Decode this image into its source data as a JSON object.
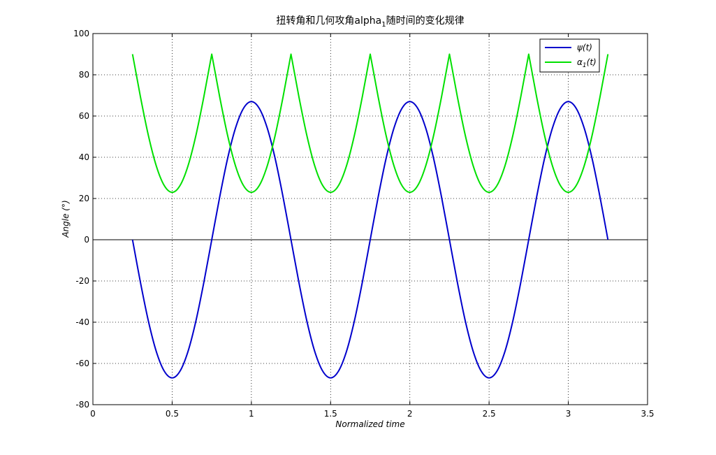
{
  "chart_data": {
    "type": "line",
    "title_main": "扭转角和几何攻角alpha",
    "title_sub": "1",
    "title_rest": "随时间的变化规律",
    "xlabel": "Normalized time",
    "ylabel": "Angle (°)",
    "xlim": [
      0,
      3.5
    ],
    "ylim": [
      -80,
      100
    ],
    "xticks": [
      0,
      0.5,
      1,
      1.5,
      2,
      2.5,
      3,
      3.5
    ],
    "yticks": [
      -80,
      -60,
      -40,
      -20,
      0,
      20,
      40,
      60,
      80,
      100
    ],
    "xtick_labels": [
      "0",
      "0.5",
      "1",
      "1.5",
      "2",
      "2.5",
      "3",
      "3.5"
    ],
    "ytick_labels": [
      "-80",
      "-60",
      "-40",
      "-20",
      "0",
      "20",
      "40",
      "60",
      "80",
      "100"
    ],
    "grid": true,
    "legend_position": "top-right",
    "series": [
      {
        "name": "ψ(t)",
        "legend_label": "ψ(t)",
        "color": "#0000cc",
        "x": [
          0.25,
          0.3,
          0.35,
          0.4,
          0.45,
          0.5,
          0.55,
          0.6,
          0.65,
          0.7,
          0.75,
          0.8,
          0.85,
          0.9,
          0.95,
          1.0,
          1.05,
          1.1,
          1.15,
          1.2,
          1.25,
          1.3,
          1.35,
          1.4,
          1.45,
          1.5,
          1.55,
          1.6,
          1.65,
          1.7,
          1.75,
          1.8,
          1.85,
          1.9,
          1.95,
          2.0,
          2.05,
          2.1,
          2.15,
          2.2,
          2.25,
          2.3,
          2.35,
          2.4,
          2.45,
          2.5,
          2.55,
          2.6,
          2.65,
          2.7,
          2.75,
          2.8,
          2.85,
          2.9,
          2.95,
          3.0,
          3.05,
          3.1,
          3.15,
          3.2,
          3.25
        ],
        "y": [
          0,
          -20.7,
          -39.4,
          -54.2,
          -63.7,
          -67.0,
          -63.7,
          -54.2,
          -39.4,
          -20.7,
          0,
          20.7,
          39.4,
          54.2,
          63.7,
          67.0,
          63.7,
          54.2,
          39.4,
          20.7,
          0,
          -20.7,
          -39.4,
          -54.2,
          -63.7,
          -67.0,
          -63.7,
          -54.2,
          -39.4,
          -20.7,
          0,
          20.7,
          39.4,
          54.2,
          63.7,
          67.0,
          63.7,
          54.2,
          39.4,
          20.7,
          0,
          -20.7,
          -39.4,
          -54.2,
          -63.7,
          -67.0,
          -63.7,
          -54.2,
          -39.4,
          -20.7,
          0,
          20.7,
          39.4,
          54.2,
          63.7,
          67.0,
          63.7,
          54.2,
          39.4,
          20.7,
          0
        ]
      },
      {
        "name": "α1(t)",
        "legend_label_main": "α",
        "legend_label_sub": "1",
        "legend_label_rest": "(t)",
        "color": "#00e000",
        "x": [
          0.25,
          0.3,
          0.35,
          0.4,
          0.45,
          0.5,
          0.55,
          0.6,
          0.65,
          0.7,
          0.75,
          0.8,
          0.85,
          0.9,
          0.95,
          1.0,
          1.05,
          1.1,
          1.15,
          1.2,
          1.25,
          1.3,
          1.35,
          1.4,
          1.45,
          1.5,
          1.55,
          1.6,
          1.65,
          1.7,
          1.75,
          1.8,
          1.85,
          1.9,
          1.95,
          2.0,
          2.05,
          2.1,
          2.15,
          2.2,
          2.25,
          2.3,
          2.35,
          2.4,
          2.45,
          2.5,
          2.55,
          2.6,
          2.65,
          2.7,
          2.75,
          2.8,
          2.85,
          2.9,
          2.95,
          3.0,
          3.05,
          3.1,
          3.15,
          3.2,
          3.25
        ],
        "y": [
          90,
          69.3,
          50.6,
          35.8,
          26.3,
          23.0,
          26.3,
          35.8,
          50.6,
          69.3,
          90,
          69.3,
          50.6,
          35.8,
          26.3,
          23.0,
          26.3,
          35.8,
          50.6,
          69.3,
          90,
          69.3,
          50.6,
          35.8,
          26.3,
          23.0,
          26.3,
          35.8,
          50.6,
          69.3,
          90,
          69.3,
          50.6,
          35.8,
          26.3,
          23.0,
          26.3,
          35.8,
          50.6,
          69.3,
          90,
          69.3,
          50.6,
          35.8,
          26.3,
          23.0,
          26.3,
          35.8,
          50.6,
          69.3,
          90,
          69.3,
          50.6,
          35.8,
          26.3,
          23.0,
          26.3,
          35.8,
          50.6,
          69.3,
          90
        ]
      }
    ]
  }
}
